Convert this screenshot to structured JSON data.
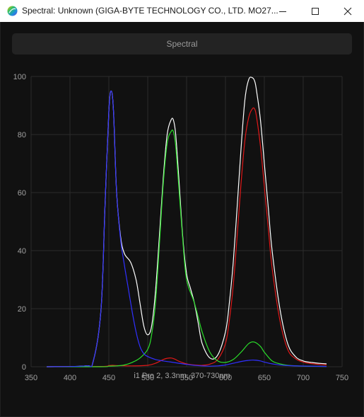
{
  "window": {
    "title": "Spectral: Unknown (GIGA-BYTE TECHNOLOGY CO., LTD. MO27...",
    "app_icon": "colorful-sphere-icon",
    "controls": [
      "minimize-icon",
      "maximize-icon",
      "close-icon"
    ]
  },
  "toolbar": {
    "spectral_label": "Spectral"
  },
  "chart_caption": "i1 Pro 2, 3.3nm, 370-730nm",
  "colors": {
    "white": "#ffffff",
    "red": "#e01818",
    "green": "#2adf2a",
    "blue": "#3030ff",
    "grid": "#2c2c2c",
    "background": "#111111"
  },
  "chart_data": {
    "type": "line",
    "xlim": [
      350,
      750
    ],
    "ylim": [
      0,
      100
    ],
    "xticks": [
      350,
      400,
      450,
      500,
      550,
      600,
      650,
      700,
      750
    ],
    "yticks": [
      0,
      20,
      40,
      60,
      80,
      100
    ],
    "grid": true,
    "series": [
      {
        "color": "#ffffff",
        "x": [
          370,
          420,
          430,
          440,
          445,
          450,
          453,
          456,
          460,
          465,
          470,
          478,
          485,
          490,
          495,
          500,
          505,
          510,
          515,
          520,
          525,
          530,
          533,
          536,
          540,
          545,
          550,
          555,
          560,
          565,
          570,
          580,
          590,
          600,
          605,
          610,
          615,
          620,
          625,
          630,
          635,
          638,
          640,
          645,
          650,
          655,
          660,
          670,
          680,
          690,
          700,
          710,
          720,
          730
        ],
        "y": [
          0,
          0.3,
          2,
          20,
          55,
          88,
          95,
          88,
          60,
          45,
          39,
          36,
          30,
          22,
          14,
          11,
          14,
          26,
          45,
          65,
          80,
          85,
          85,
          80,
          65,
          45,
          32,
          27,
          22,
          15,
          8,
          3,
          4,
          12,
          22,
          36,
          55,
          75,
          92,
          99,
          99.5,
          98,
          95,
          85,
          70,
          55,
          40,
          20,
          8,
          3.5,
          2,
          1.5,
          1.2,
          1
        ]
      },
      {
        "color": "#e01818",
        "x": [
          370,
          440,
          450,
          455,
          460,
          480,
          500,
          510,
          520,
          525,
          530,
          535,
          540,
          550,
          560,
          570,
          580,
          590,
          600,
          605,
          610,
          615,
          620,
          625,
          630,
          635,
          638,
          640,
          645,
          650,
          655,
          660,
          670,
          680,
          690,
          700,
          710,
          720,
          730
        ],
        "y": [
          0,
          0.1,
          0.4,
          0.5,
          0.4,
          0.3,
          0.5,
          1.2,
          2.5,
          2.9,
          3,
          2.6,
          1.9,
          1,
          0.6,
          0.5,
          0.9,
          2.5,
          8,
          16,
          28,
          45,
          63,
          78,
          86,
          89,
          88.5,
          86,
          76,
          62,
          48,
          34,
          16,
          6,
          2.8,
          1.6,
          1.1,
          0.8,
          0.6
        ]
      },
      {
        "color": "#2adf2a",
        "x": [
          370,
          440,
          450,
          460,
          470,
          480,
          490,
          500,
          505,
          510,
          515,
          520,
          525,
          530,
          533,
          536,
          540,
          545,
          550,
          560,
          570,
          580,
          590,
          600,
          610,
          620,
          630,
          637,
          645,
          650,
          660,
          670,
          680,
          700,
          730
        ],
        "y": [
          0,
          0,
          0.2,
          0.3,
          0.6,
          1.5,
          3,
          6,
          11,
          22,
          42,
          63,
          77,
          81,
          81,
          76,
          62,
          44,
          30,
          22,
          12,
          5,
          2,
          1.5,
          2.5,
          5,
          8,
          8.5,
          7,
          5,
          2,
          1,
          0.5,
          0.2,
          0.1
        ]
      },
      {
        "color": "#3030ff",
        "x": [
          370,
          420,
          430,
          440,
          445,
          450,
          453,
          456,
          460,
          465,
          470,
          475,
          480,
          485,
          490,
          495,
          500,
          510,
          520,
          530,
          540,
          550,
          560,
          570,
          580,
          590,
          600,
          610,
          620,
          630,
          637,
          645,
          650,
          660,
          680,
          730
        ],
        "y": [
          0,
          0.3,
          2,
          20,
          55,
          88,
          95,
          88,
          60,
          44,
          35,
          27,
          19,
          12,
          7,
          4.5,
          3.5,
          2.5,
          2,
          1.6,
          1.2,
          0.8,
          0.5,
          0.3,
          0.2,
          0.3,
          0.6,
          1.2,
          1.8,
          2.2,
          2.3,
          2,
          1.6,
          1,
          0.4,
          0.1
        ]
      }
    ]
  }
}
